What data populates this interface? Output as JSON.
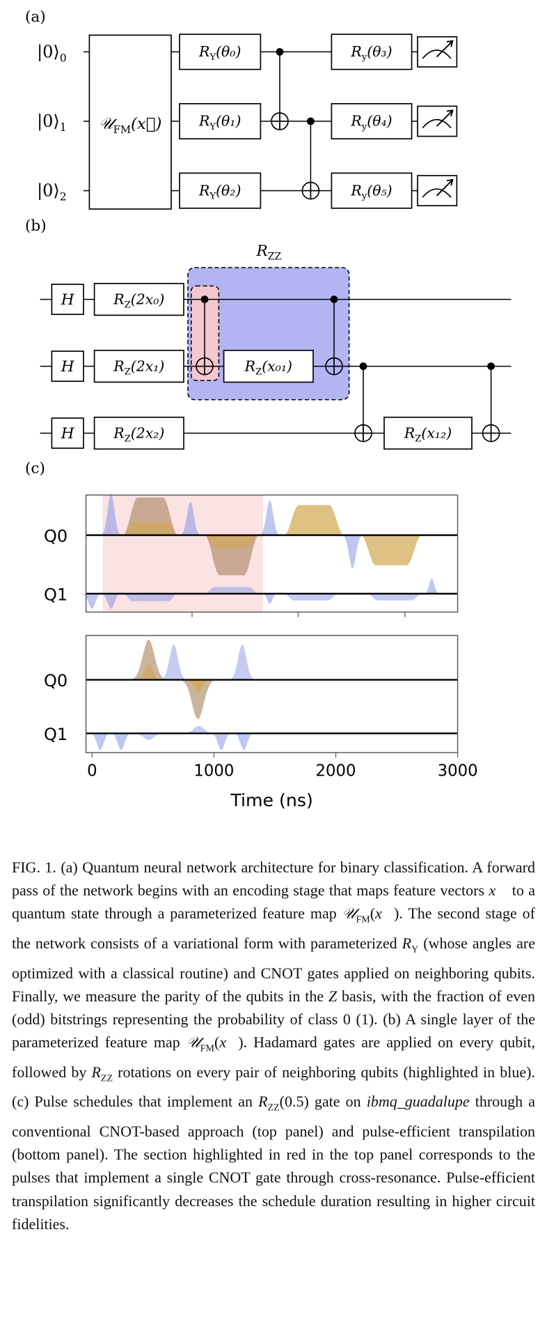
{
  "panel_a": {
    "label": "(a)",
    "kets": [
      {
        "ket": "|0⟩",
        "sub": "0"
      },
      {
        "ket": "|0⟩",
        "sub": "1"
      },
      {
        "ket": "|0⟩",
        "sub": "2"
      }
    ],
    "feature_map": {
      "base": "𝒰",
      "sub": "FM",
      "arg": "(x⃗)"
    },
    "ry_gates": [
      {
        "base": "R",
        "sub": "Y",
        "arg": "(θ₀)"
      },
      {
        "base": "R",
        "sub": "Y",
        "arg": "(θ₁)"
      },
      {
        "base": "R",
        "sub": "Y",
        "arg": "(θ₂)"
      }
    ],
    "ry_final": [
      {
        "base": "R",
        "sub": "y",
        "arg": "(θ₃)"
      },
      {
        "base": "R",
        "sub": "y",
        "arg": "(θ₄)"
      },
      {
        "base": "R",
        "sub": "y",
        "arg": "(θ₅)"
      }
    ]
  },
  "panel_b": {
    "label": "(b)",
    "rzz_label": {
      "base": "R",
      "sub": "ZZ"
    },
    "hadamard": "H",
    "rz_gates": [
      {
        "base": "R",
        "sub": "Z",
        "arg": "(2x₀)"
      },
      {
        "base": "R",
        "sub": "Z",
        "arg": "(2x₁)"
      },
      {
        "base": "R",
        "sub": "Z",
        "arg": "(2x₂)"
      }
    ],
    "rz_pair_gates": [
      {
        "base": "R",
        "sub": "Z",
        "arg": "(x₀₁)"
      },
      {
        "base": "R",
        "sub": "Z",
        "arg": "(x₁₂)"
      }
    ]
  },
  "panel_c": {
    "label": "(c)",
    "channels": [
      "Q0",
      "Q1"
    ],
    "xlabel": "Time (ns)",
    "xlim": [
      -50,
      3000
    ],
    "xticks": [
      0,
      1000,
      2000,
      3000
    ]
  },
  "caption": [
    {
      "t": "FIG. 1. (a) Quantum neural network architecture for binary classification. A forward pass of the network begins with an encoding stage that maps feature vectors "
    },
    {
      "i": "x⃗"
    },
    {
      "t": " to a quantum state through a parameterized feature map "
    },
    {
      "i": "𝒰"
    },
    {
      "sub": "FM"
    },
    {
      "t": "("
    },
    {
      "i": "x⃗"
    },
    {
      "t": "). The second stage of the network consists of a variational form with parameterized "
    },
    {
      "i": "R"
    },
    {
      "sub": "Y"
    },
    {
      "t": " (whose angles are optimized with a classical routine) and CNOT gates applied on neighboring qubits. Finally, we measure the parity of the qubits in the "
    },
    {
      "i": "Z"
    },
    {
      "t": " basis, with the fraction of even (odd) bitstrings representing the probability of class 0 (1). (b) A single layer of the parameterized feature map "
    },
    {
      "i": "𝒰"
    },
    {
      "sub": "FM"
    },
    {
      "t": "("
    },
    {
      "i": "x⃗"
    },
    {
      "t": "). Hadamard gates are applied on every qubit, followed by "
    },
    {
      "i": "R"
    },
    {
      "sub": "ZZ"
    },
    {
      "t": " rotations on every pair of neighboring qubits (highlighted in blue). (c) Pulse schedules that implement an "
    },
    {
      "i": "R"
    },
    {
      "sub": "ZZ"
    },
    {
      "t": "(0.5) gate on "
    },
    {
      "i": "ibmq_guadalupe"
    },
    {
      "t": " through a conventional CNOT-based approach (top panel) and pulse-efficient transpilation (bottom panel). The section highlighted in red in the top panel corresponds to the pulses that implement a single CNOT gate through cross-resonance. Pulse-efficient transpilation significantly decreases the schedule duration resulting in higher circuit fidelities."
    }
  ]
}
